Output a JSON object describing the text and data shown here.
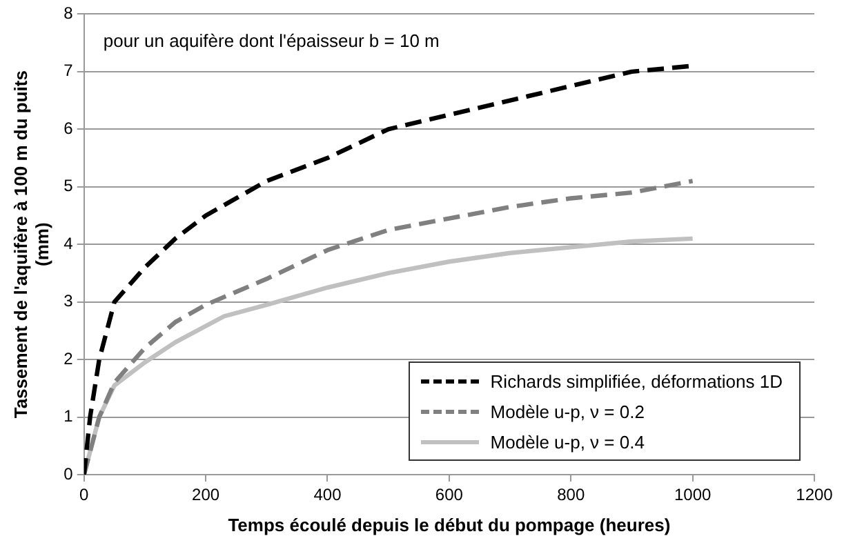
{
  "chart_data": {
    "type": "line",
    "xlabel": "Temps écoulé depuis le début du pompage (heures)",
    "ylabel": "Tassement de l'aquifère à 100 m du puits (mm)",
    "annotations": [
      "pour un aquifère dont l'épaisseur b = 10 m"
    ],
    "xlim": [
      0,
      1200
    ],
    "xticks": [
      0,
      200,
      400,
      600,
      800,
      1000,
      1200
    ],
    "ylim": [
      0,
      8
    ],
    "yticks": [
      0,
      1,
      2,
      3,
      4,
      5,
      6,
      7,
      8
    ],
    "grid": "y",
    "legend": "bottom right",
    "marker": "none",
    "series": [
      {
        "name": "Richards simplifiée, déformations 1D",
        "color": "#000000",
        "line_style": "dashed",
        "x": [
          0,
          10,
          25,
          50,
          100,
          150,
          200,
          300,
          400,
          500,
          600,
          700,
          800,
          900,
          1000
        ],
        "values": [
          0,
          1,
          2,
          3,
          3.6,
          4.1,
          4.5,
          5.1,
          5.5,
          6.0,
          6.25,
          6.5,
          6.75,
          7.0,
          7.1
        ]
      },
      {
        "name": "Modèle u-p, ν = 0.2",
        "color": "#808080",
        "line_style": "dashed",
        "x": [
          0,
          25,
          50,
          100,
          150,
          200,
          300,
          400,
          500,
          600,
          700,
          800,
          900,
          1000
        ],
        "values": [
          0,
          1,
          1.6,
          2.2,
          2.65,
          2.95,
          3.4,
          3.9,
          4.25,
          4.45,
          4.65,
          4.8,
          4.9,
          5.1
        ]
      },
      {
        "name": "Modèle u-p, ν = 0.4",
        "color": "#c0c0c0",
        "line_style": "solid",
        "x": [
          0,
          25,
          50,
          100,
          150,
          230,
          300,
          400,
          500,
          600,
          700,
          800,
          900,
          1000
        ],
        "values": [
          0,
          1,
          1.55,
          1.95,
          2.3,
          2.75,
          2.95,
          3.25,
          3.5,
          3.7,
          3.85,
          3.95,
          4.05,
          4.1
        ]
      }
    ]
  }
}
